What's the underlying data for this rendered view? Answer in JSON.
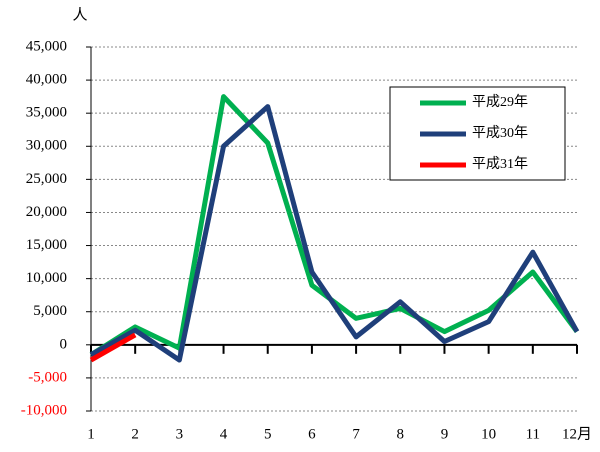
{
  "chart_data": {
    "type": "line",
    "y_unit": "人",
    "categories": [
      "1",
      "2",
      "3",
      "4",
      "5",
      "6",
      "7",
      "8",
      "9",
      "10",
      "11",
      "12月"
    ],
    "series": [
      {
        "name": "平成29年",
        "color": "#00b050",
        "values": [
          -1500,
          2700,
          -500,
          37500,
          30500,
          9000,
          4000,
          5500,
          2000,
          5200,
          11000,
          2000
        ]
      },
      {
        "name": "平成30年",
        "color": "#1f3f7a",
        "values": [
          -1500,
          2200,
          -2300,
          30000,
          36000,
          11000,
          1200,
          6500,
          500,
          3500,
          14000,
          2000
        ]
      },
      {
        "name": "平成31年",
        "color": "#ff0000",
        "values": [
          -2300,
          1500,
          null,
          null,
          null,
          null,
          null,
          null,
          null,
          null,
          null,
          null
        ]
      }
    ],
    "ylim": [
      -10000,
      45000
    ],
    "yticks": [
      {
        "value": -10000,
        "label": "-10,000"
      },
      {
        "value": -5000,
        "label": "-5,000"
      },
      0,
      {
        "value": 5000,
        "label": "5,000"
      },
      {
        "value": 10000,
        "label": "10,000"
      },
      {
        "value": 15000,
        "label": "15,000"
      },
      {
        "value": 20000,
        "label": "20,000"
      },
      {
        "value": 25000,
        "label": "25,000"
      },
      {
        "value": 30000,
        "label": "30,000"
      },
      {
        "value": 35000,
        "label": "35,000"
      },
      {
        "value": 40000,
        "label": "40,000"
      },
      {
        "value": 45000,
        "label": "45,000"
      }
    ],
    "negative_tick_color": "#ff0000",
    "grid": true,
    "legend": "upper right"
  }
}
